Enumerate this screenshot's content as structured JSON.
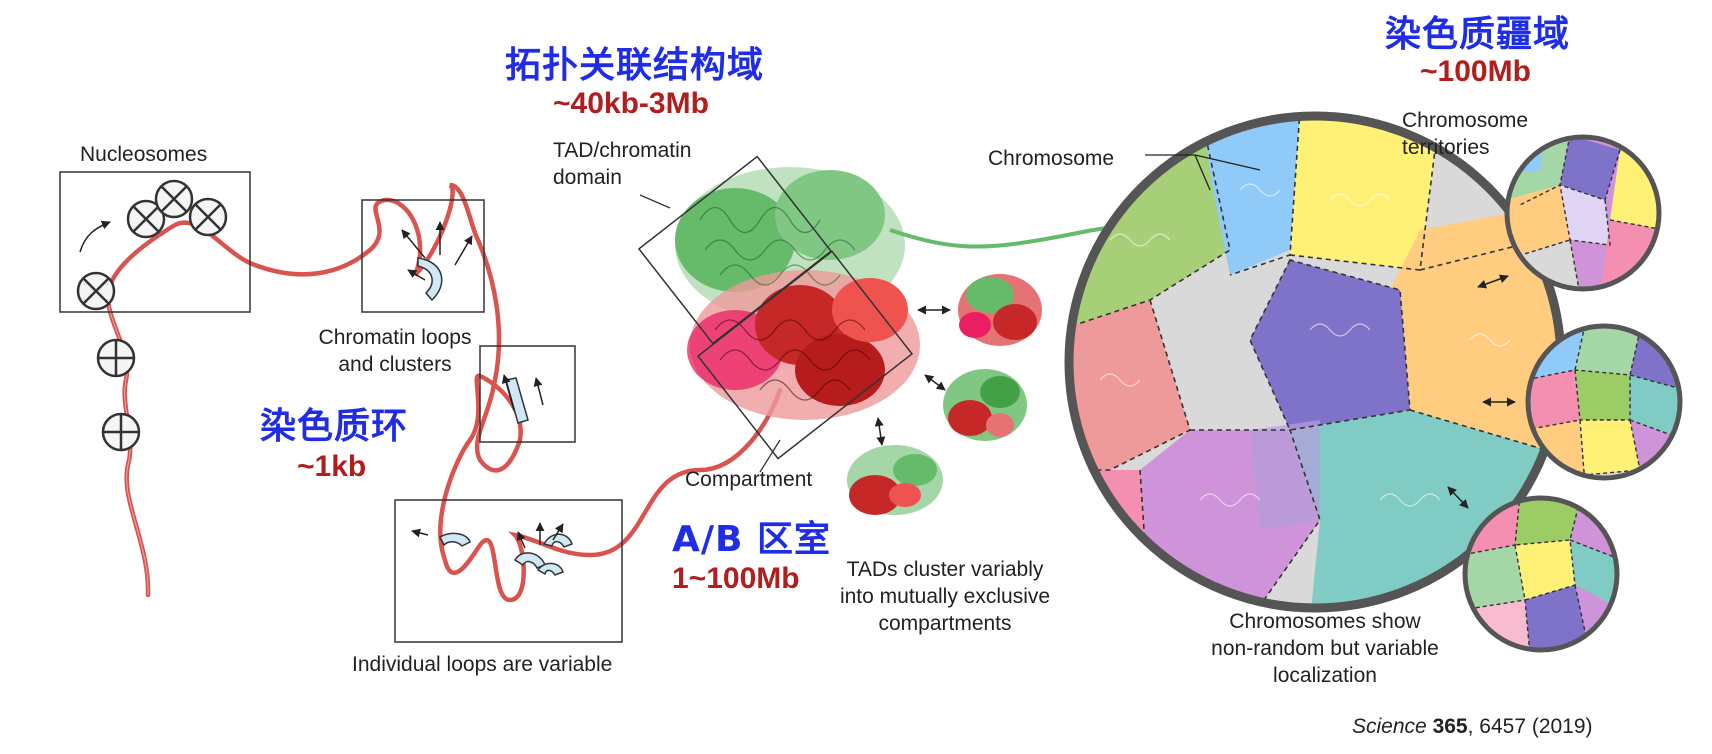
{
  "labels": {
    "nucleosomes": "Nucleosomes",
    "chromatin_loops_1": "Chromatin loops",
    "chromatin_loops_2": "and clusters",
    "individual_loops": "Individual loops are variable",
    "tad_1": "TAD/chromatin",
    "tad_2": "domain",
    "compartment": "Compartment",
    "tads_cluster_1": "TADs cluster variably",
    "tads_cluster_2": "into mutually exclusive",
    "tads_cluster_3": "compartments",
    "chromosome": "Chromosome",
    "territories_1": "Chromosome",
    "territories_2": "territories",
    "show_1": "Chromosomes show",
    "show_2": "non-random but variable",
    "show_3": "localization"
  },
  "annotations": {
    "loop_cn": "染色质环",
    "loop_size": "~1kb",
    "tad_cn": "拓扑关联结构域",
    "tad_size": "~40kb-3Mb",
    "compartment_cn": "A/B 区室",
    "compartment_size": "1~100Mb",
    "territory_cn": "染色质疆域",
    "territory_size": "~100Mb"
  },
  "citation": {
    "journal": "Science",
    "volume": "365",
    "rest": ", 6457 (2019)"
  },
  "colors": {
    "chromatin_fiber": "#d9534f",
    "blue_label": "#1f2ee6",
    "red_label": "#b01e1e",
    "tad_green": "#4caf50",
    "tad_red": "#c62828"
  }
}
